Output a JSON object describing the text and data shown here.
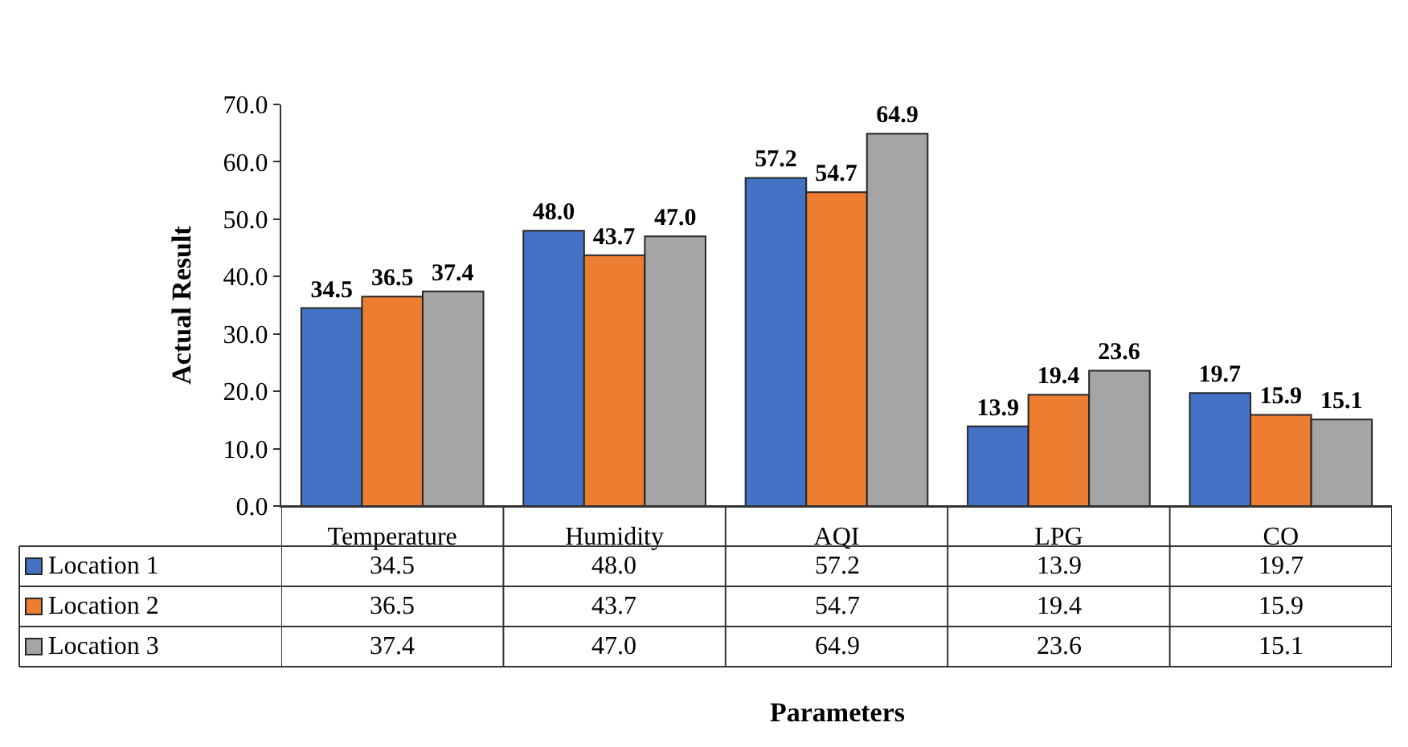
{
  "chart_data": {
    "type": "bar",
    "annotations": [
      "Parameters"
    ],
    "ylabel": "Actual Result",
    "categories": [
      "Temperature",
      "Humidity",
      "AQI",
      "LPG",
      "CO"
    ],
    "series": [
      {
        "name": "Location 1",
        "color": "#4472c4",
        "values": [
          34.5,
          48.0,
          57.2,
          13.9,
          19.7
        ],
        "value_labels": [
          "34.5",
          "48.0",
          "57.2",
          "13.9",
          "19.7"
        ]
      },
      {
        "name": "Location 2",
        "color": "#ed7d31",
        "values": [
          36.5,
          43.7,
          54.7,
          19.4,
          15.9
        ],
        "value_labels": [
          "36.5",
          "43.7",
          "54.7",
          "19.4",
          "15.9"
        ]
      },
      {
        "name": "Location 3",
        "color": "#a5a5a5",
        "values": [
          37.4,
          47.0,
          64.9,
          23.6,
          15.1
        ],
        "value_labels": [
          "37.4",
          "47.0",
          "64.9",
          "23.6",
          "15.1"
        ]
      }
    ],
    "ylim": [
      0,
      70
    ],
    "yticks": [
      {
        "value": 0,
        "label": "0.0"
      },
      {
        "value": 10,
        "label": "10.0"
      },
      {
        "value": 20,
        "label": "20.0"
      },
      {
        "value": 30,
        "label": "30.0"
      },
      {
        "value": 40,
        "label": "40.0"
      },
      {
        "value": 50,
        "label": "50.0"
      },
      {
        "value": 60,
        "label": "60.0"
      },
      {
        "value": 70,
        "label": "70.0"
      }
    ],
    "legend": "bottom"
  }
}
